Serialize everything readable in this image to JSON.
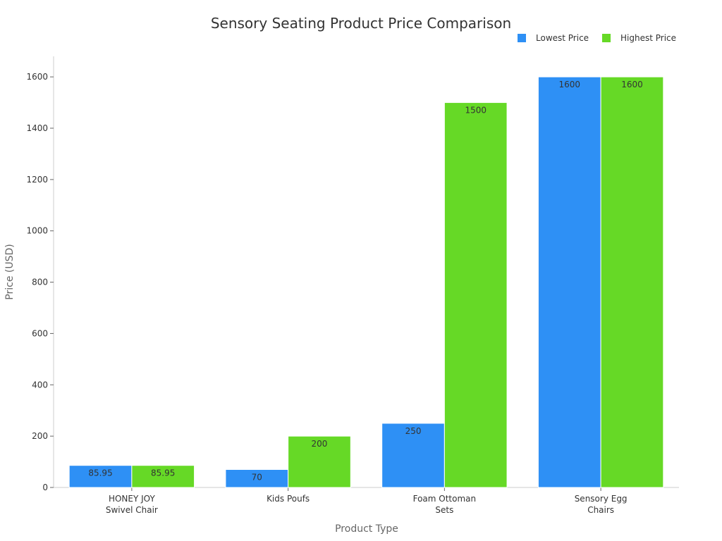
{
  "chart_data": {
    "type": "bar",
    "title": "Sensory Seating Product Price Comparison",
    "xlabel": "Product Type",
    "ylabel": "Price (USD)",
    "categories": [
      [
        "HONEY JOY",
        "Swivel Chair"
      ],
      [
        "Kids Poufs"
      ],
      [
        "Foam Ottoman",
        "Sets"
      ],
      [
        "Sensory Egg",
        "Chairs"
      ]
    ],
    "series": [
      {
        "name": "Lowest Price",
        "color": "#2e90f5",
        "values": [
          85.95,
          70,
          250,
          1600
        ]
      },
      {
        "name": "Highest Price",
        "color": "#66d926",
        "values": [
          85.95,
          200,
          1500,
          1600
        ]
      }
    ],
    "ylim": [
      0,
      1680
    ],
    "yticks": [
      0,
      200,
      400,
      600,
      800,
      1000,
      1200,
      1400,
      1600
    ],
    "grid": false,
    "legend": "top-right"
  }
}
